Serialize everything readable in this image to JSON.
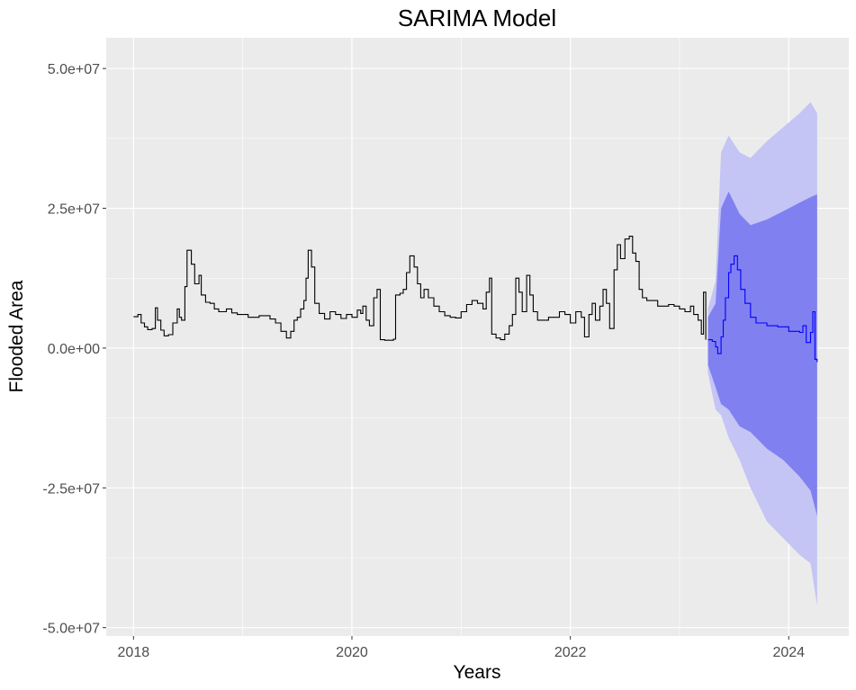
{
  "chart_data": {
    "type": "line",
    "title": "SARIMA Model",
    "xlabel": "Years",
    "ylabel": "Flooded Area",
    "xlim": [
      2017.75,
      2024.55
    ],
    "ylim": [
      -51500000.0,
      55500000.0
    ],
    "x_major_ticks": [
      2018,
      2020,
      2022,
      2024
    ],
    "x_tick_labels": [
      "2018",
      "2020",
      "2022",
      "2024"
    ],
    "y_major_ticks": [
      -50000000.0,
      -25000000.0,
      0,
      25000000.0,
      50000000.0
    ],
    "y_tick_labels": [
      "-5.0e+07",
      "-2.5e+07",
      "0.0e+00",
      "2.5e+07",
      "5.0e+07"
    ],
    "grid": true,
    "colors": {
      "panel": "#ebebeb",
      "grid": "#ffffff",
      "observed": "#000000",
      "forecast": "#0000ff",
      "band_80": "#8080f0",
      "band_95": "#c4c4f5"
    },
    "series": [
      {
        "kind": "observed",
        "step": true,
        "points": [
          [
            2018.0,
            5600000.0
          ],
          [
            2018.04,
            6000000.0
          ],
          [
            2018.07,
            4500000.0
          ],
          [
            2018.1,
            3800000.0
          ],
          [
            2018.13,
            3300000.0
          ],
          [
            2018.17,
            3500000.0
          ],
          [
            2018.2,
            7200000.0
          ],
          [
            2018.22,
            5000000.0
          ],
          [
            2018.25,
            3200000.0
          ],
          [
            2018.28,
            2200000.0
          ],
          [
            2018.32,
            2400000.0
          ],
          [
            2018.36,
            4500000.0
          ],
          [
            2018.4,
            7000000.0
          ],
          [
            2018.42,
            5500000.0
          ],
          [
            2018.44,
            5000000.0
          ],
          [
            2018.47,
            11000000.0
          ],
          [
            2018.49,
            17500000.0
          ],
          [
            2018.53,
            15000000.0
          ],
          [
            2018.56,
            11500000.0
          ],
          [
            2018.6,
            13000000.0
          ],
          [
            2018.62,
            9500000.0
          ],
          [
            2018.66,
            8200000.0
          ],
          [
            2018.7,
            8000000.0
          ],
          [
            2018.74,
            7000000.0
          ],
          [
            2018.78,
            6500000.0
          ],
          [
            2018.85,
            7000000.0
          ],
          [
            2018.9,
            6300000.0
          ],
          [
            2018.95,
            6000000.0
          ],
          [
            2019.05,
            5500000.0
          ],
          [
            2019.15,
            5800000.0
          ],
          [
            2019.25,
            5200000.0
          ],
          [
            2019.3,
            4500000.0
          ],
          [
            2019.35,
            3000000.0
          ],
          [
            2019.4,
            1800000.0
          ],
          [
            2019.44,
            3000000.0
          ],
          [
            2019.47,
            5000000.0
          ],
          [
            2019.5,
            5500000.0
          ],
          [
            2019.53,
            7000000.0
          ],
          [
            2019.56,
            8500000.0
          ],
          [
            2019.58,
            12500000.0
          ],
          [
            2019.6,
            17500000.0
          ],
          [
            2019.63,
            14500000.0
          ],
          [
            2019.66,
            8000000.0
          ],
          [
            2019.7,
            6200000.0
          ],
          [
            2019.75,
            5200000.0
          ],
          [
            2019.8,
            6500000.0
          ],
          [
            2019.85,
            6000000.0
          ],
          [
            2019.9,
            5300000.0
          ],
          [
            2019.95,
            6000000.0
          ],
          [
            2020.0,
            5500000.0
          ],
          [
            2020.05,
            6800000.0
          ],
          [
            2020.08,
            6200000.0
          ],
          [
            2020.1,
            7500000.0
          ],
          [
            2020.13,
            5000000.0
          ],
          [
            2020.16,
            4000000.0
          ],
          [
            2020.2,
            9000000.0
          ],
          [
            2020.23,
            10500000.0
          ],
          [
            2020.26,
            1500000.0
          ],
          [
            2020.3,
            1400000.0
          ],
          [
            2020.38,
            1600000.0
          ],
          [
            2020.4,
            9500000.0
          ],
          [
            2020.44,
            9800000.0
          ],
          [
            2020.47,
            10500000.0
          ],
          [
            2020.5,
            13500000.0
          ],
          [
            2020.53,
            16500000.0
          ],
          [
            2020.57,
            14500000.0
          ],
          [
            2020.6,
            11500000.0
          ],
          [
            2020.63,
            9000000.0
          ],
          [
            2020.66,
            10500000.0
          ],
          [
            2020.7,
            9000000.0
          ],
          [
            2020.75,
            7500000.0
          ],
          [
            2020.8,
            6500000.0
          ],
          [
            2020.85,
            5800000.0
          ],
          [
            2020.9,
            5500000.0
          ],
          [
            2020.95,
            5400000.0
          ],
          [
            2021.0,
            6500000.0
          ],
          [
            2021.05,
            7800000.0
          ],
          [
            2021.1,
            8500000.0
          ],
          [
            2021.15,
            8000000.0
          ],
          [
            2021.2,
            7000000.0
          ],
          [
            2021.23,
            10000000.0
          ],
          [
            2021.26,
            12500000.0
          ],
          [
            2021.28,
            2500000.0
          ],
          [
            2021.32,
            1800000.0
          ],
          [
            2021.36,
            1500000.0
          ],
          [
            2021.4,
            2500000.0
          ],
          [
            2021.44,
            4000000.0
          ],
          [
            2021.47,
            6000000.0
          ],
          [
            2021.5,
            12500000.0
          ],
          [
            2021.53,
            10000000.0
          ],
          [
            2021.56,
            6500000.0
          ],
          [
            2021.6,
            13000000.0
          ],
          [
            2021.63,
            9500000.0
          ],
          [
            2021.66,
            6500000.0
          ],
          [
            2021.7,
            5000000.0
          ],
          [
            2021.8,
            5500000.0
          ],
          [
            2021.9,
            6500000.0
          ],
          [
            2021.95,
            6000000.0
          ],
          [
            2022.0,
            4500000.0
          ],
          [
            2022.05,
            6500000.0
          ],
          [
            2022.1,
            5500000.0
          ],
          [
            2022.13,
            2000000.0
          ],
          [
            2022.17,
            6000000.0
          ],
          [
            2022.2,
            8000000.0
          ],
          [
            2022.23,
            5000000.0
          ],
          [
            2022.27,
            7500000.0
          ],
          [
            2022.3,
            10500000.0
          ],
          [
            2022.33,
            8000000.0
          ],
          [
            2022.36,
            3500000.0
          ],
          [
            2022.4,
            14000000.0
          ],
          [
            2022.43,
            18500000.0
          ],
          [
            2022.46,
            16000000.0
          ],
          [
            2022.5,
            19500000.0
          ],
          [
            2022.54,
            20000000.0
          ],
          [
            2022.57,
            17000000.0
          ],
          [
            2022.6,
            15500000.0
          ],
          [
            2022.63,
            10500000.0
          ],
          [
            2022.66,
            9000000.0
          ],
          [
            2022.7,
            8500000.0
          ],
          [
            2022.8,
            7500000.0
          ],
          [
            2022.9,
            7800000.0
          ],
          [
            2022.95,
            7500000.0
          ],
          [
            2023.0,
            7000000.0
          ],
          [
            2023.05,
            6500000.0
          ],
          [
            2023.1,
            7500000.0
          ],
          [
            2023.13,
            6000000.0
          ],
          [
            2023.17,
            5000000.0
          ],
          [
            2023.2,
            2500000.0
          ],
          [
            2023.22,
            10000000.0
          ],
          [
            2023.24,
            1500000.0
          ]
        ]
      },
      {
        "kind": "forecast",
        "step": true,
        "points": [
          [
            2023.26,
            1500000.0
          ],
          [
            2023.3,
            1200000.0
          ],
          [
            2023.33,
            200000.0
          ],
          [
            2023.35,
            -1000000.0
          ],
          [
            2023.38,
            2000000.0
          ],
          [
            2023.4,
            5000000.0
          ],
          [
            2023.42,
            9000000.0
          ],
          [
            2023.45,
            13500000.0
          ],
          [
            2023.47,
            15000000.0
          ],
          [
            2023.5,
            16500000.0
          ],
          [
            2023.53,
            14000000.0
          ],
          [
            2023.56,
            10500000.0
          ],
          [
            2023.6,
            8000000.0
          ],
          [
            2023.65,
            5500000.0
          ],
          [
            2023.7,
            4500000.0
          ],
          [
            2023.8,
            4000000.0
          ],
          [
            2023.9,
            3800000.0
          ],
          [
            2024.0,
            3000000.0
          ],
          [
            2024.1,
            2800000.0
          ],
          [
            2024.13,
            4000000.0
          ],
          [
            2024.16,
            1000000.0
          ],
          [
            2024.2,
            2800000.0
          ],
          [
            2024.22,
            6500000.0
          ],
          [
            2024.24,
            -2000000.0
          ],
          [
            2024.26,
            -2500000.0
          ]
        ]
      }
    ],
    "band_80": [
      [
        2023.26,
        5500000.0,
        -3000000.0
      ],
      [
        2023.33,
        8000000.0,
        -7000000.0
      ],
      [
        2023.38,
        25000000.0,
        -10000000.0
      ],
      [
        2023.45,
        28000000.0,
        -11000000.0
      ],
      [
        2023.55,
        24000000.0,
        -14000000.0
      ],
      [
        2023.65,
        22000000.0,
        -15000000.0
      ],
      [
        2023.8,
        23000000.0,
        -18000000.0
      ],
      [
        2023.95,
        24500000.0,
        -20000000.0
      ],
      [
        2024.1,
        26000000.0,
        -23000000.0
      ],
      [
        2024.2,
        27000000.0,
        -25500000.0
      ],
      [
        2024.26,
        27500000.0,
        -30000000.0
      ]
    ],
    "band_95": [
      [
        2023.26,
        7000000.0,
        -4500000.0
      ],
      [
        2023.33,
        12000000.0,
        -11000000.0
      ],
      [
        2023.38,
        35000000.0,
        -12000000.0
      ],
      [
        2023.45,
        38000000.0,
        -16000000.0
      ],
      [
        2023.55,
        35000000.0,
        -20000000.0
      ],
      [
        2023.65,
        34000000.0,
        -25000000.0
      ],
      [
        2023.8,
        37000000.0,
        -31000000.0
      ],
      [
        2023.95,
        39500000.0,
        -34000000.0
      ],
      [
        2024.1,
        42000000.0,
        -37000000.0
      ],
      [
        2024.2,
        44000000.0,
        -38500000.0
      ],
      [
        2024.26,
        42000000.0,
        -46000000.0
      ]
    ]
  }
}
